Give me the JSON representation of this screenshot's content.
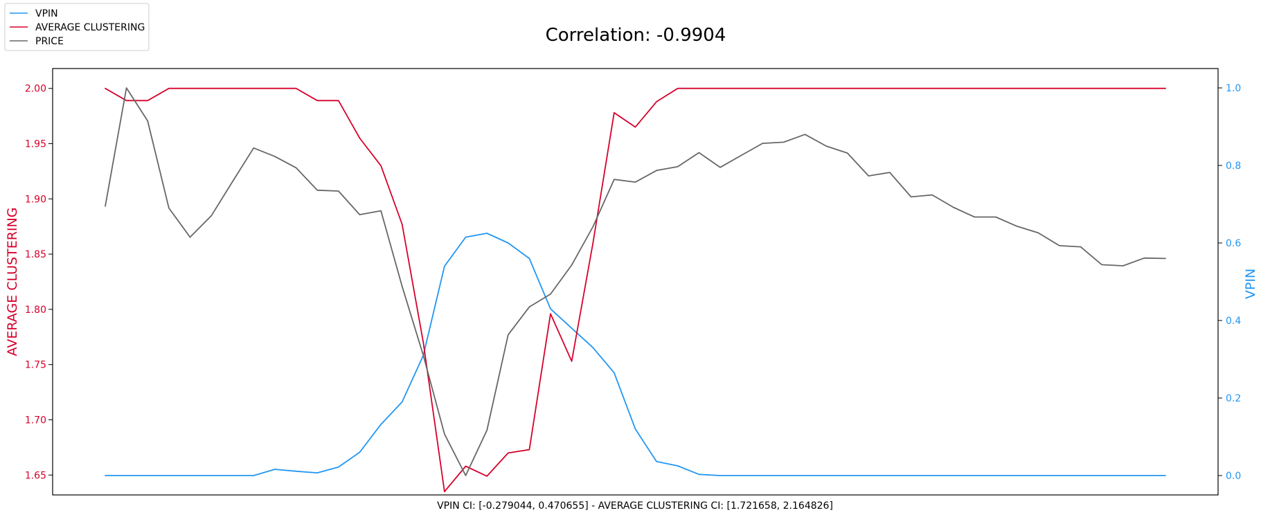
{
  "chart_data": {
    "type": "line",
    "title": "Correlation: -0.9904",
    "footer": "VPIN CI: [-0.279044, 0.470655] - AVERAGE CLUSTERING CI: [1.721658, 2.164826]",
    "left_axis": {
      "label": "AVERAGE CLUSTERING",
      "color": "#d5002a",
      "ylim": [
        1.632,
        2.018
      ],
      "ticks": [
        "1.65",
        "1.70",
        "1.75",
        "1.80",
        "1.85",
        "1.90",
        "1.95",
        "2.00"
      ]
    },
    "right_axis": {
      "label": "VPIN",
      "color": "#2196f3",
      "ylim": [
        -0.05,
        1.05
      ],
      "ticks": [
        "0.0",
        "0.2",
        "0.4",
        "0.6",
        "0.8",
        "1.0"
      ]
    },
    "x": [
      0,
      1,
      2,
      3,
      4,
      5,
      6,
      7,
      8,
      9,
      10,
      11,
      12,
      13,
      14,
      15,
      16,
      17,
      18,
      19,
      20,
      21,
      22,
      23,
      24,
      25,
      26,
      27,
      28,
      29,
      30,
      31,
      32,
      33,
      34,
      35,
      36,
      37,
      38,
      39,
      40,
      41,
      42,
      43,
      44,
      45,
      46,
      47,
      48,
      49,
      50
    ],
    "grid": false,
    "legend_position": "top-left",
    "series": [
      {
        "name": "VPIN",
        "axis": "right",
        "color": "#2196f3",
        "values": [
          0,
          0,
          0,
          0,
          0,
          0,
          0,
          0,
          0.016,
          0.011,
          0.007,
          0.022,
          0.06,
          0.132,
          0.19,
          0.31,
          0.54,
          0.615,
          0.625,
          0.6,
          0.56,
          0.43,
          0.38,
          0.33,
          0.265,
          0.12,
          0.036,
          0.025,
          0.003,
          0,
          0,
          0,
          0,
          0,
          0,
          0,
          0,
          0,
          0,
          0,
          0,
          0,
          0,
          0,
          0,
          0,
          0,
          0,
          0,
          0,
          0
        ]
      },
      {
        "name": "AVERAGE CLUSTERING",
        "axis": "left",
        "color": "#d5002a",
        "values": [
          2.0,
          1.989,
          1.989,
          2.0,
          2.0,
          2.0,
          2.0,
          2.0,
          2.0,
          2.0,
          1.989,
          1.989,
          1.955,
          1.93,
          1.877,
          1.77,
          1.635,
          1.658,
          1.649,
          1.67,
          1.673,
          1.796,
          1.753,
          1.86,
          1.978,
          1.965,
          1.988,
          2.0,
          2.0,
          2.0,
          2.0,
          2.0,
          2.0,
          2.0,
          2.0,
          2.0,
          2.0,
          2.0,
          2.0,
          2.0,
          2.0,
          2.0,
          2.0,
          2.0,
          2.0,
          2.0,
          2.0,
          2.0,
          2.0,
          2.0,
          2.0
        ]
      },
      {
        "name": "PRICE",
        "axis": "right",
        "color": "#666666",
        "values": [
          0.695,
          1.0,
          0.915,
          0.69,
          0.615,
          0.67,
          0.758,
          0.845,
          0.823,
          0.794,
          0.736,
          0.734,
          0.673,
          0.683,
          0.488,
          0.31,
          0.107,
          0.0,
          0.117,
          0.363,
          0.435,
          0.468,
          0.543,
          0.642,
          0.764,
          0.757,
          0.787,
          0.797,
          0.833,
          0.795,
          0.826,
          0.857,
          0.86,
          0.88,
          0.85,
          0.832,
          0.773,
          0.782,
          0.719,
          0.724,
          0.692,
          0.667,
          0.667,
          0.643,
          0.626,
          0.593,
          0.59,
          0.544,
          0.541,
          0.561,
          0.56
        ]
      }
    ]
  }
}
